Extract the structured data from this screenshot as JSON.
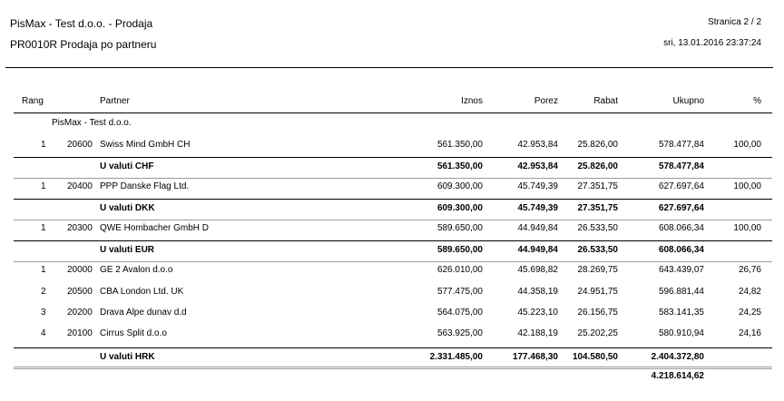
{
  "header": {
    "company_title": "PisMax - Test d.o.o. - Prodaja",
    "report_title": "PR0010R Prodaja po partneru",
    "page_label": "Stranica 2 / 2",
    "datetime": "sri, 13.01.2016 23:37:24"
  },
  "columns": {
    "rang": "Rang",
    "partner": "Partner",
    "iznos": "Iznos",
    "porez": "Porez",
    "rabat": "Rabat",
    "ukupno": "Ukupno",
    "pct": "%"
  },
  "group_label": "PisMax - Test d.o.o.",
  "rows": [
    {
      "type": "item",
      "rang": "1",
      "code": "20600",
      "name": "Swiss Mind GmbH CH",
      "iznos": "561.350,00",
      "porez": "42.953,84",
      "rabat": "25.826,00",
      "ukupno": "578.477,84",
      "pct": "100,00"
    },
    {
      "type": "subtotal",
      "label": "U valuti CHF",
      "iznos": "561.350,00",
      "porez": "42.953,84",
      "rabat": "25.826,00",
      "ukupno": "578.477,84"
    },
    {
      "type": "item",
      "rang": "1",
      "code": "20400",
      "name": "PPP Danske Flag Ltd.",
      "iznos": "609.300,00",
      "porez": "45.749,39",
      "rabat": "27.351,75",
      "ukupno": "627.697,64",
      "pct": "100,00"
    },
    {
      "type": "subtotal",
      "label": "U valuti DKK",
      "iznos": "609.300,00",
      "porez": "45.749,39",
      "rabat": "27.351,75",
      "ukupno": "627.697,64"
    },
    {
      "type": "item",
      "rang": "1",
      "code": "20300",
      "name": "QWE Hombacher GmbH D",
      "iznos": "589.650,00",
      "porez": "44.949,84",
      "rabat": "26.533,50",
      "ukupno": "608.066,34",
      "pct": "100,00"
    },
    {
      "type": "subtotal",
      "label": "U valuti EUR",
      "iznos": "589.650,00",
      "porez": "44.949,84",
      "rabat": "26.533,50",
      "ukupno": "608.066,34"
    },
    {
      "type": "item",
      "rang": "1",
      "code": "20000",
      "name": "GE 2 Avalon d.o.o",
      "iznos": "626.010,00",
      "porez": "45.698,82",
      "rabat": "28.269,75",
      "ukupno": "643.439,07",
      "pct": "26,76"
    },
    {
      "type": "item",
      "rang": "2",
      "code": "20500",
      "name": "CBA London Ltd. UK",
      "iznos": "577.475,00",
      "porez": "44.358,19",
      "rabat": "24.951,75",
      "ukupno": "596.881,44",
      "pct": "24,82"
    },
    {
      "type": "item",
      "rang": "3",
      "code": "20200",
      "name": "Drava Alpe dunav d.d",
      "iznos": "564.075,00",
      "porez": "45.223,10",
      "rabat": "26.156,75",
      "ukupno": "583.141,35",
      "pct": "24,25"
    },
    {
      "type": "item",
      "rang": "4",
      "code": "20100",
      "name": "Cirrus Split d.o.o",
      "iznos": "563.925,00",
      "porez": "42.188,19",
      "rabat": "25.202,25",
      "ukupno": "580.910,94",
      "pct": "24,16"
    },
    {
      "type": "subtotal",
      "label": "U valuti HRK",
      "iznos": "2.331.485,00",
      "porez": "177.468,30",
      "rabat": "104.580,50",
      "ukupno": "2.404.372,80"
    }
  ],
  "grand_total": "4.218.614,62"
}
